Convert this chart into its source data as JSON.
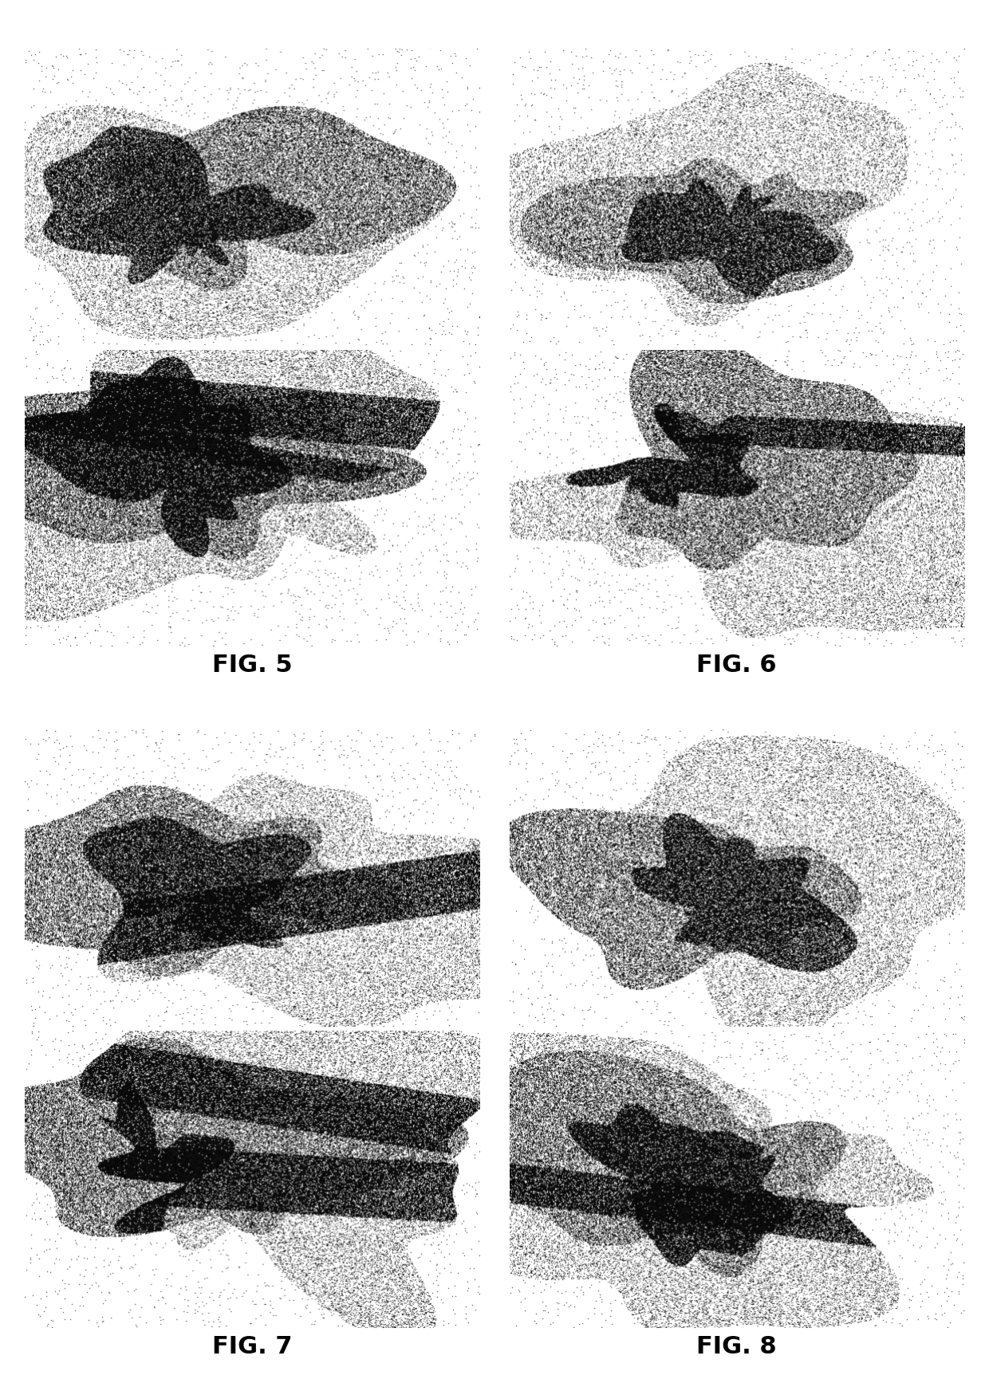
{
  "figure_labels": [
    "FIG. 5",
    "FIG. 6",
    "FIG. 7",
    "FIG. 8"
  ],
  "label_fontsize": 22,
  "label_fontweight": "bold",
  "background_color": "#ffffff",
  "fig_width": 12.4,
  "fig_height": 17.35,
  "dpi": 100
}
